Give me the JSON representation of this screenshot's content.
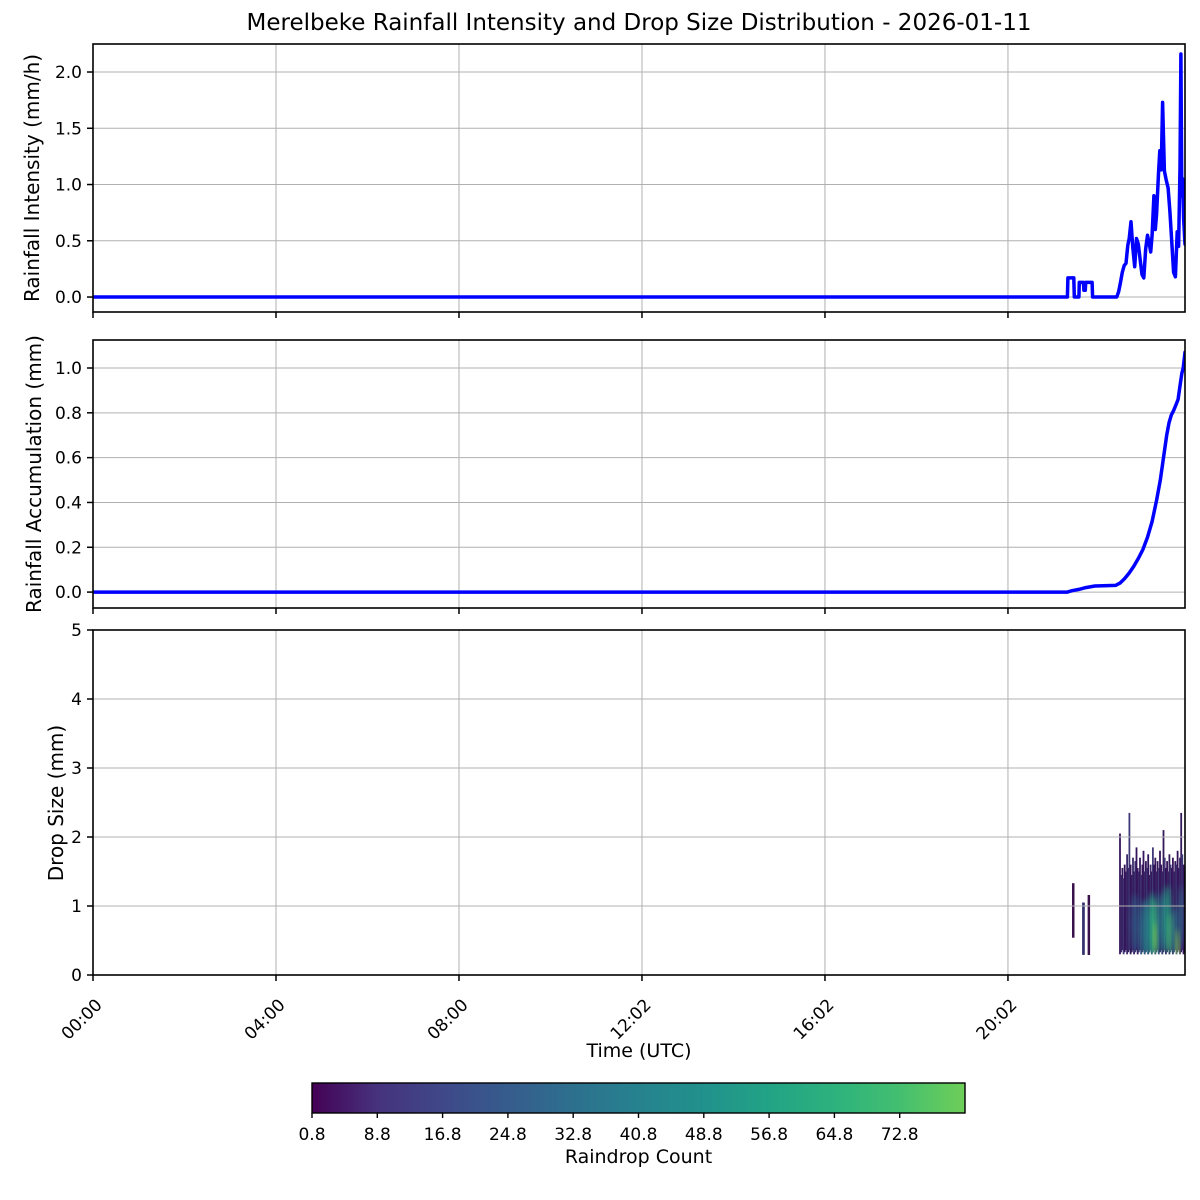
{
  "title": "Merelbeke Rainfall Intensity and Drop Size Distribution - 2026-01-11",
  "xlabel": "Time (UTC)",
  "x_ticks": [
    "00:00",
    "04:00",
    "08:00",
    "12:02",
    "16:02",
    "20:02"
  ],
  "x_tick_hours": [
    0,
    4,
    8,
    12,
    16,
    20
  ],
  "x_range_hours": [
    0,
    23.87
  ],
  "line_color": "#0000ff",
  "grid_color": "#b0b0b0",
  "colorbar": {
    "label": "Raindrop Count",
    "ticks": [
      "0.8",
      "8.8",
      "16.8",
      "24.8",
      "32.8",
      "40.8",
      "48.8",
      "56.8",
      "64.8",
      "72.8"
    ],
    "tick_values": [
      0.8,
      8.8,
      16.8,
      24.8,
      32.8,
      40.8,
      48.8,
      56.8,
      64.8,
      72.8
    ],
    "range": [
      0.8,
      80.8
    ],
    "gradient_stops": [
      "#440154",
      "#46327e",
      "#3f4889",
      "#365c8d",
      "#2d708e",
      "#26828e",
      "#21918c",
      "#22a385",
      "#2db27d",
      "#44bf70",
      "#6ece58"
    ]
  },
  "chart_data": [
    {
      "type": "line",
      "ylabel": "Rainfall Intensity (mm/h)",
      "ylim": [
        -0.133,
        2.249
      ],
      "ytick_values": [
        0.0,
        0.5,
        1.0,
        1.5,
        2.0
      ],
      "ytick_labels": [
        "0.0",
        "0.5",
        "1.0",
        "1.5",
        "2.0"
      ],
      "grid": true,
      "series_color": "#0000ff",
      "points": [
        [
          0.0,
          0.0
        ],
        [
          21.3,
          0.0
        ],
        [
          21.31,
          0.17
        ],
        [
          21.44,
          0.17
        ],
        [
          21.45,
          0.0
        ],
        [
          21.55,
          0.0
        ],
        [
          21.56,
          0.13
        ],
        [
          21.65,
          0.13
        ],
        [
          21.66,
          0.06
        ],
        [
          21.69,
          0.06
        ],
        [
          21.7,
          0.13
        ],
        [
          21.84,
          0.13
        ],
        [
          21.85,
          0.0
        ],
        [
          22.38,
          0.0
        ],
        [
          22.42,
          0.05
        ],
        [
          22.46,
          0.13
        ],
        [
          22.5,
          0.22
        ],
        [
          22.54,
          0.28
        ],
        [
          22.58,
          0.3
        ],
        [
          22.62,
          0.46
        ],
        [
          22.65,
          0.52
        ],
        [
          22.69,
          0.67
        ],
        [
          22.73,
          0.44
        ],
        [
          22.77,
          0.27
        ],
        [
          22.81,
          0.52
        ],
        [
          22.85,
          0.47
        ],
        [
          22.89,
          0.33
        ],
        [
          22.93,
          0.2
        ],
        [
          22.97,
          0.17
        ],
        [
          23.01,
          0.43
        ],
        [
          23.05,
          0.55
        ],
        [
          23.09,
          0.47
        ],
        [
          23.12,
          0.4
        ],
        [
          23.15,
          0.55
        ],
        [
          23.19,
          0.9
        ],
        [
          23.22,
          0.6
        ],
        [
          23.25,
          0.74
        ],
        [
          23.29,
          1.1
        ],
        [
          23.32,
          1.3
        ],
        [
          23.35,
          1.13
        ],
        [
          23.38,
          1.73
        ],
        [
          23.42,
          1.12
        ],
        [
          23.46,
          1.04
        ],
        [
          23.5,
          0.97
        ],
        [
          23.54,
          0.76
        ],
        [
          23.58,
          0.5
        ],
        [
          23.62,
          0.22
        ],
        [
          23.66,
          0.18
        ],
        [
          23.7,
          0.58
        ],
        [
          23.73,
          0.45
        ],
        [
          23.76,
          1.15
        ],
        [
          23.78,
          2.16
        ],
        [
          23.8,
          0.9
        ],
        [
          23.82,
          1.05
        ],
        [
          23.84,
          0.7
        ],
        [
          23.87,
          0.47
        ]
      ]
    },
    {
      "type": "line",
      "ylabel": "Rainfall Accumulation (mm)",
      "ylim": [
        -0.071,
        1.125
      ],
      "ytick_values": [
        0.0,
        0.2,
        0.4,
        0.6,
        0.8,
        1.0
      ],
      "ytick_labels": [
        "0.0",
        "0.2",
        "0.4",
        "0.6",
        "0.8",
        "1.0"
      ],
      "grid": true,
      "series_color": "#0000ff",
      "points": [
        [
          0.0,
          0.0
        ],
        [
          21.3,
          0.0
        ],
        [
          21.4,
          0.006
        ],
        [
          21.55,
          0.012
        ],
        [
          21.7,
          0.02
        ],
        [
          21.9,
          0.027
        ],
        [
          22.35,
          0.03
        ],
        [
          22.45,
          0.04
        ],
        [
          22.55,
          0.06
        ],
        [
          22.65,
          0.085
        ],
        [
          22.75,
          0.115
        ],
        [
          22.85,
          0.15
        ],
        [
          22.95,
          0.19
        ],
        [
          23.05,
          0.245
        ],
        [
          23.15,
          0.315
        ],
        [
          23.25,
          0.41
        ],
        [
          23.33,
          0.5
        ],
        [
          23.4,
          0.6
        ],
        [
          23.47,
          0.7
        ],
        [
          23.52,
          0.755
        ],
        [
          23.57,
          0.79
        ],
        [
          23.62,
          0.81
        ],
        [
          23.67,
          0.835
        ],
        [
          23.72,
          0.86
        ],
        [
          23.76,
          0.92
        ],
        [
          23.8,
          0.975
        ],
        [
          23.83,
          1.0
        ],
        [
          23.87,
          1.07
        ]
      ]
    },
    {
      "type": "heatmap",
      "ylabel": "Drop Size (mm)",
      "ylim": [
        0,
        5
      ],
      "ytick_values": [
        0,
        1,
        2,
        3,
        4,
        5
      ],
      "ytick_labels": [
        "0",
        "1",
        "2",
        "3",
        "4",
        "5"
      ],
      "grid": true,
      "colorbar_label": "Raindrop Count",
      "strips": [
        {
          "t": 21.4,
          "w": 0.055,
          "d0": 0.54,
          "d1": 1.33,
          "color": "#38114d"
        },
        {
          "t": 21.62,
          "w": 0.06,
          "d0": 0.29,
          "d1": 1.05,
          "color": "#33306e"
        },
        {
          "t": 21.74,
          "w": 0.055,
          "d0": 0.29,
          "d1": 1.16,
          "color": "#38114d"
        }
      ],
      "mesh": {
        "t_start": 22.43,
        "t_step": 0.0257,
        "base": 0.3,
        "palette": [
          "#38175c",
          "#3b2a69",
          "#341a5a",
          "#403a78",
          "#33145a"
        ],
        "tops": [
          2.05,
          1.45,
          1.55,
          1.4,
          1.6,
          1.5,
          1.75,
          1.55,
          2.35,
          1.6,
          1.45,
          1.7,
          1.5,
          1.65,
          1.85,
          1.55,
          1.5,
          1.7,
          1.45,
          1.6,
          1.8,
          1.5,
          1.65,
          1.55,
          1.75,
          1.45,
          1.6,
          1.5,
          1.85,
          1.6,
          1.7,
          1.5,
          1.65,
          1.55,
          1.8,
          1.6,
          1.5,
          2.1,
          1.7,
          1.55,
          1.65,
          1.5,
          1.75,
          1.6,
          1.55,
          1.7,
          1.5,
          1.65,
          1.6,
          1.8,
          1.55,
          1.7,
          2.35,
          1.75,
          1.6,
          1.5
        ]
      },
      "blobs": [
        {
          "t": 22.78,
          "d": 0.75,
          "rx": 0.1,
          "ry": 0.42,
          "color": "#2d5f8a",
          "o": 0.7
        },
        {
          "t": 23.0,
          "d": 0.65,
          "rx": 0.12,
          "ry": 0.45,
          "color": "#26818e",
          "o": 0.75
        },
        {
          "t": 23.15,
          "d": 0.7,
          "rx": 0.1,
          "ry": 0.5,
          "color": "#21a187",
          "o": 0.8
        },
        {
          "t": 23.21,
          "d": 0.68,
          "rx": 0.055,
          "ry": 0.42,
          "color": "#3dbc74",
          "o": 0.9
        },
        {
          "t": 23.22,
          "d": 0.55,
          "rx": 0.03,
          "ry": 0.22,
          "color": "#aadc32",
          "o": 0.85
        },
        {
          "t": 23.35,
          "d": 0.75,
          "rx": 0.08,
          "ry": 0.45,
          "color": "#277f8e",
          "o": 0.75
        },
        {
          "t": 23.48,
          "d": 0.8,
          "rx": 0.09,
          "ry": 0.5,
          "color": "#22a884",
          "o": 0.8
        },
        {
          "t": 23.55,
          "d": 0.6,
          "rx": 0.05,
          "ry": 0.3,
          "color": "#54c568",
          "o": 0.75
        },
        {
          "t": 23.65,
          "d": 0.6,
          "rx": 0.07,
          "ry": 0.4,
          "color": "#26828e",
          "o": 0.75
        },
        {
          "t": 23.71,
          "d": 0.42,
          "rx": 0.035,
          "ry": 0.25,
          "color": "#a5db36",
          "o": 0.9
        },
        {
          "t": 23.78,
          "d": 0.85,
          "rx": 0.05,
          "ry": 0.45,
          "color": "#2a788e",
          "o": 0.75
        }
      ]
    }
  ]
}
